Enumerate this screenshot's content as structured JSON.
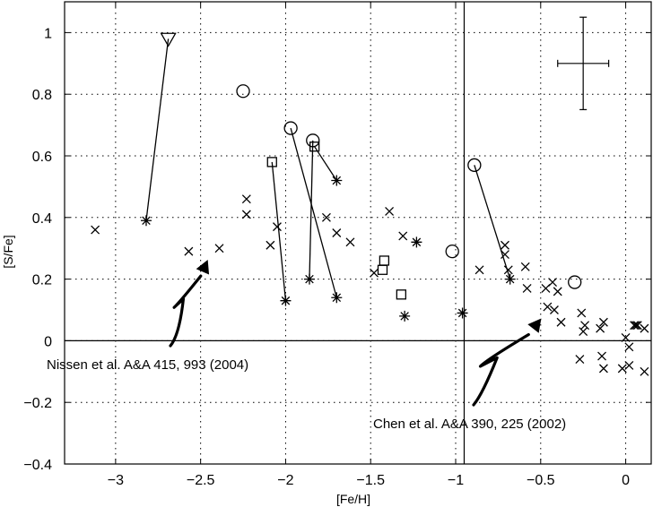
{
  "chart_data": {
    "type": "scatter",
    "xlabel": "[Fe/H]",
    "ylabel": "[S/Fe]",
    "xlim": [
      -3.3,
      0.15
    ],
    "ylim": [
      -0.4,
      1.1
    ],
    "x_ticks": [
      -3,
      -2.5,
      -2,
      -1.5,
      -1,
      -0.5,
      0
    ],
    "y_ticks": [
      -0.4,
      -0.2,
      0,
      0.2,
      0.4,
      0.6,
      0.8,
      1
    ],
    "x_tick_labels": [
      "−3",
      "−2.5",
      "−2",
      "−1.5",
      "−1",
      "−0.5",
      "0"
    ],
    "y_tick_labels": [
      "−0.4",
      "−0.2",
      "0",
      "0.2",
      "0.4",
      "0.6",
      "0.8",
      "1"
    ],
    "grid": "dotted",
    "reference_lines": {
      "y": 0,
      "x": -0.95
    },
    "error_bar": {
      "x": -0.25,
      "y": 0.9,
      "dx": 0.15,
      "dy": 0.15
    },
    "series": [
      {
        "marker": "x",
        "points": [
          [
            -3.12,
            0.36
          ],
          [
            -2.57,
            0.29
          ],
          [
            -2.39,
            0.3
          ],
          [
            -2.23,
            0.46
          ],
          [
            -2.23,
            0.41
          ],
          [
            -2.09,
            0.31
          ],
          [
            -2.05,
            0.37
          ],
          [
            -1.76,
            0.4
          ],
          [
            -1.7,
            0.35
          ],
          [
            -1.62,
            0.32
          ],
          [
            -1.39,
            0.42
          ],
          [
            -1.31,
            0.34
          ],
          [
            -1.48,
            0.22
          ],
          [
            -0.86,
            0.23
          ],
          [
            -0.71,
            0.31
          ],
          [
            -0.71,
            0.28
          ],
          [
            -0.69,
            0.23
          ],
          [
            -0.59,
            0.24
          ],
          [
            -0.58,
            0.17
          ],
          [
            -0.47,
            0.17
          ],
          [
            -0.46,
            0.11
          ],
          [
            -0.43,
            0.19
          ],
          [
            -0.4,
            0.16
          ],
          [
            -0.38,
            0.06
          ],
          [
            -0.42,
            0.1
          ],
          [
            -0.26,
            0.09
          ],
          [
            -0.24,
            0.05
          ],
          [
            -0.25,
            0.03
          ],
          [
            -0.15,
            0.04
          ],
          [
            -0.13,
            0.06
          ],
          [
            -0.14,
            -0.05
          ],
          [
            -0.13,
            -0.09
          ],
          [
            -0.27,
            -0.06
          ],
          [
            0.0,
            0.01
          ],
          [
            0.02,
            -0.02
          ],
          [
            0.05,
            0.05
          ],
          [
            0.07,
            0.05
          ],
          [
            0.06,
            0.05
          ],
          [
            0.11,
            0.04
          ],
          [
            0.11,
            -0.1
          ],
          [
            0.02,
            -0.08
          ],
          [
            -0.02,
            -0.09
          ]
        ]
      },
      {
        "marker": "asterisk",
        "points": [
          [
            -2.82,
            0.39
          ],
          [
            -2.0,
            0.13
          ],
          [
            -1.86,
            0.2
          ],
          [
            -1.7,
            0.14
          ],
          [
            -1.7,
            0.52
          ],
          [
            -1.23,
            0.32
          ],
          [
            -1.3,
            0.08
          ],
          [
            -0.96,
            0.09
          ],
          [
            -0.68,
            0.2
          ]
        ]
      },
      {
        "marker": "circle",
        "points": [
          [
            -2.25,
            0.81
          ],
          [
            -1.97,
            0.69
          ],
          [
            -1.84,
            0.65
          ],
          [
            -1.02,
            0.29
          ],
          [
            -0.89,
            0.57
          ],
          [
            -0.3,
            0.19
          ]
        ]
      },
      {
        "marker": "square",
        "points": [
          [
            -2.08,
            0.58
          ],
          [
            -1.83,
            0.63
          ],
          [
            -1.42,
            0.26
          ],
          [
            -1.43,
            0.23
          ],
          [
            -1.32,
            0.15
          ]
        ]
      },
      {
        "marker": "triangle-down",
        "points": [
          [
            -2.69,
            0.98
          ]
        ]
      }
    ],
    "connectors": [
      [
        [
          -2.69,
          0.98
        ],
        [
          -2.82,
          0.39
        ]
      ],
      [
        [
          -2.08,
          0.58
        ],
        [
          -2.0,
          0.13
        ]
      ],
      [
        [
          -1.97,
          0.69
        ],
        [
          -1.7,
          0.14
        ]
      ],
      [
        [
          -1.84,
          0.65
        ],
        [
          -1.86,
          0.2
        ]
      ],
      [
        [
          -1.83,
          0.63
        ],
        [
          -1.7,
          0.52
        ]
      ],
      [
        [
          -0.89,
          0.57
        ],
        [
          -0.68,
          0.2
        ]
      ]
    ],
    "annotations": [
      {
        "text": "Nissen et al. A&A 415, 993 (2004)",
        "arrow_target": [
          -2.46,
          0.26
        ]
      },
      {
        "text": "Chen et al. A&A 390, 225 (2002)",
        "arrow_target": [
          -0.5,
          0.07
        ]
      }
    ]
  }
}
